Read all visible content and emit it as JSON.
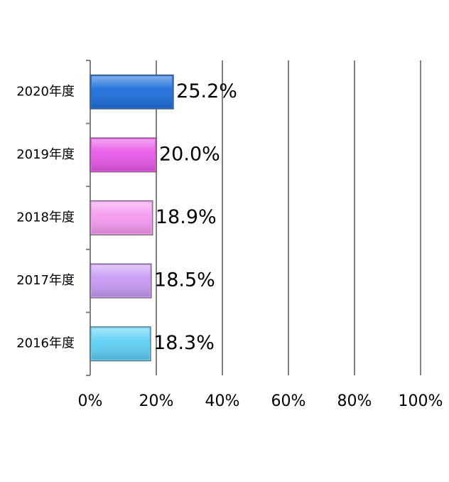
{
  "chart_data": {
    "type": "hbar",
    "categories": [
      "2020年度",
      "2019年度",
      "2018年度",
      "2017年度",
      "2016年度"
    ],
    "values": [
      25.2,
      20.0,
      18.9,
      18.5,
      18.3
    ],
    "value_labels": [
      "25.2%",
      "20.0%",
      "18.9%",
      "18.5%",
      "18.3%"
    ],
    "colors": [
      "#1f6fdc",
      "#e85ae8",
      "#f59af0",
      "#c99af5",
      "#5fd0f5"
    ],
    "xlim": [
      0,
      100
    ],
    "xticks": [
      {
        "value": 0,
        "label": "0%"
      },
      {
        "value": 20,
        "label": "20%"
      },
      {
        "value": 40,
        "label": "40%"
      },
      {
        "value": 60,
        "label": "60%"
      },
      {
        "value": 80,
        "label": "80%"
      },
      {
        "value": 100,
        "label": "100%"
      }
    ],
    "grid": true
  }
}
